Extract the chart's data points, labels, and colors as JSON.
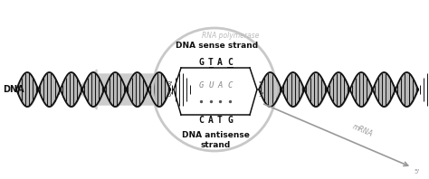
{
  "bg_color": "#ffffff",
  "dna_color": "#111111",
  "helix_fill": "#b8b8b8",
  "arrow_color": "#cccccc",
  "circle_color": "#cccccc",
  "sense_label": "DNA sense strand",
  "antisense_label": "DNA antisense\nstrand",
  "rna_pol_label": "RNA polymerase",
  "mrna_label": "mRNA",
  "dna_label": "DNA",
  "fig_width": 4.74,
  "fig_height": 1.98,
  "dpi": 100
}
